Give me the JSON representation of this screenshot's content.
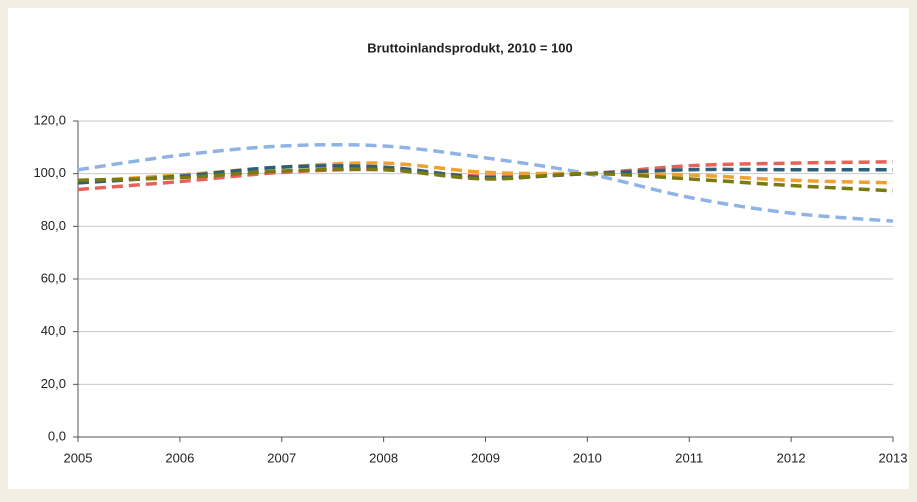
{
  "chart_data": {
    "type": "line",
    "title": "Bruttoinlandsprodukt, 2010 = 100",
    "x": [
      2005,
      2006,
      2007,
      2008,
      2009,
      2010,
      2011,
      2012,
      2013
    ],
    "xlim": [
      2005,
      2013
    ],
    "xticks": [
      2005,
      2006,
      2007,
      2008,
      2009,
      2010,
      2011,
      2012,
      2013
    ],
    "ylim": [
      0,
      120
    ],
    "yticks": [
      {
        "value": 0,
        "label": "0,0"
      },
      {
        "value": 20,
        "label": "20,0"
      },
      {
        "value": 40,
        "label": "40,0"
      },
      {
        "value": 60,
        "label": "60,0"
      },
      {
        "value": 80,
        "label": "80,0"
      },
      {
        "value": 100,
        "label": "100,0"
      },
      {
        "value": 120,
        "label": "120,0"
      }
    ],
    "grid": true,
    "series": [
      {
        "color": "#8fb4e3",
        "values": [
          101.5,
          107,
          110.5,
          110.5,
          106,
          100,
          91,
          85,
          82
        ]
      },
      {
        "color": "#e8625a",
        "values": [
          94,
          97,
          100.5,
          101.5,
          99,
          100,
          103,
          104,
          104.5
        ]
      },
      {
        "color": "#f0a030",
        "values": [
          97,
          99.5,
          102.5,
          104,
          100.5,
          100,
          99.5,
          97.5,
          96.5
        ]
      },
      {
        "color": "#2d5f7a",
        "values": [
          96.5,
          99,
          102.5,
          102.5,
          98.5,
          100,
          101.5,
          101.5,
          101.5
        ]
      },
      {
        "color": "#7a7a10",
        "values": [
          97.5,
          98.5,
          101,
          101.5,
          98,
          100,
          98,
          95.5,
          93.5
        ]
      }
    ]
  }
}
